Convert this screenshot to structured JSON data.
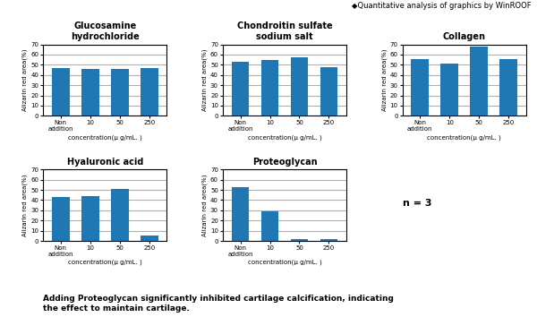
{
  "chart_data": [
    {
      "type": "bar",
      "title": "Glucosamine\nhydrochloride",
      "categories": [
        "Non\naddition",
        "10",
        "50",
        "250"
      ],
      "values": [
        47,
        46,
        46,
        47
      ],
      "xlabel": "concentration(μ g/mL. )",
      "ylabel": "Alizarin red area(%)",
      "ylim": [
        0,
        70
      ],
      "yticks": [
        0,
        10,
        20,
        30,
        40,
        50,
        60,
        70
      ],
      "grid": true
    },
    {
      "type": "bar",
      "title": "Chondroitin sulfate\nsodium salt",
      "categories": [
        "Non\naddition",
        "10",
        "50",
        "250"
      ],
      "values": [
        53,
        55,
        57,
        48
      ],
      "xlabel": "concentration(μ g/mL. )",
      "ylabel": "Alizarin red area(%)",
      "ylim": [
        0,
        70
      ],
      "yticks": [
        0,
        10,
        20,
        30,
        40,
        50,
        60,
        70
      ],
      "grid": true
    },
    {
      "type": "bar",
      "title": "Collagen",
      "categories": [
        "Non\naddition",
        "10",
        "50",
        "250"
      ],
      "values": [
        56,
        51,
        68,
        56
      ],
      "xlabel": "concentration(μ g/mL. )",
      "ylabel": "Alizarin red area(%)",
      "ylim": [
        0,
        70
      ],
      "yticks": [
        0,
        10,
        20,
        30,
        40,
        50,
        60,
        70
      ],
      "grid": true
    },
    {
      "type": "bar",
      "title": "Hyaluronic acid",
      "categories": [
        "Non\naddition",
        "10",
        "50",
        "250"
      ],
      "values": [
        43,
        44,
        51,
        5
      ],
      "xlabel": "concentration(μ g/mL. )",
      "ylabel": "Alizarin red area(%)",
      "ylim": [
        0,
        70
      ],
      "yticks": [
        0,
        10,
        20,
        30,
        40,
        50,
        60,
        70
      ],
      "grid": true
    },
    {
      "type": "bar",
      "title": "Proteoglycan",
      "categories": [
        "Non\naddition",
        "10",
        "50",
        "250"
      ],
      "values": [
        53,
        29,
        2,
        2
      ],
      "xlabel": "concentration(μ g/mL. )",
      "ylabel": "Alizarin red area(%)",
      "ylim": [
        0,
        70
      ],
      "yticks": [
        0,
        10,
        20,
        30,
        40,
        50,
        60,
        70
      ],
      "grid": true
    }
  ],
  "annotations": [
    "◆Quantitative analysis of graphics by WinROOF",
    "n = 3",
    "Adding Proteoglycan significantly inhibited cartilage calcification, indicating\nthe effect to maintain cartilage."
  ]
}
